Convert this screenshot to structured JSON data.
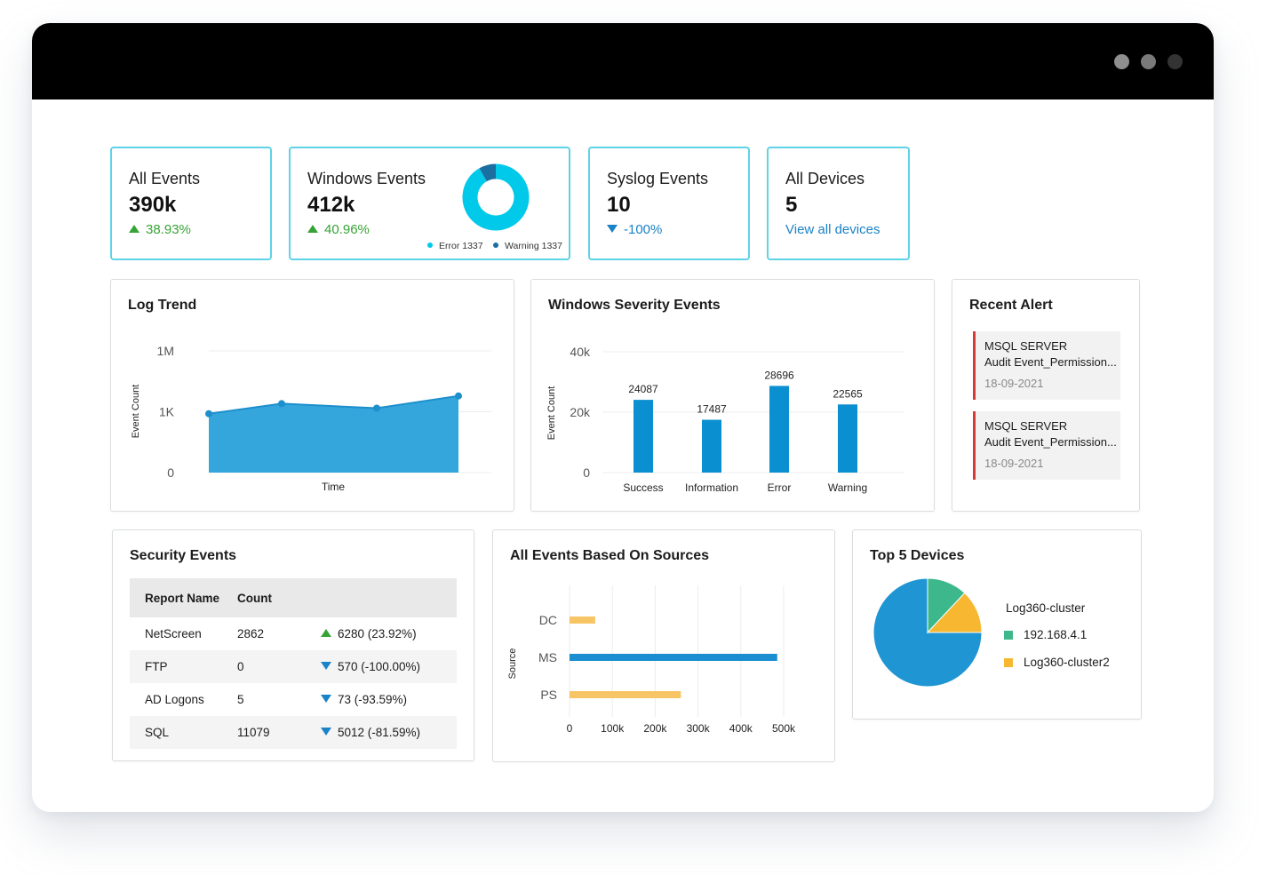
{
  "window": {
    "controls": [
      "window-control",
      "window-control",
      "window-control"
    ]
  },
  "kpis": {
    "all_events": {
      "title": "All Events",
      "value": "390k",
      "change": "38.93%"
    },
    "windows_events": {
      "title": "Windows Events",
      "value": "412k",
      "change": "40.96%",
      "legend": [
        {
          "label": "Error 1337",
          "color": "#00c9ea"
        },
        {
          "label": "Warning 1337",
          "color": "#1a6fa0"
        }
      ]
    },
    "syslog_events": {
      "title": "Syslog Events",
      "value": "10",
      "change": "-100%"
    },
    "all_devices": {
      "title": "All Devices",
      "value": "5",
      "link": "View all devices"
    }
  },
  "log_trend": {
    "title": "Log Trend"
  },
  "windows_severity": {
    "title": "Windows Severity Events"
  },
  "recent_alert": {
    "title": "Recent Alert",
    "items": [
      {
        "source": "MSQL SERVER",
        "event": "Audit Event_Permission...",
        "date": "18-09-2021"
      },
      {
        "source": "MSQL SERVER",
        "event": "Audit Event_Permission...",
        "date": "18-09-2021"
      }
    ]
  },
  "security_events": {
    "title": "Security Events",
    "headers": [
      "Report Name",
      "Count"
    ],
    "rows": [
      {
        "name": "NetScreen",
        "count": "2862",
        "trend": "6280 (23.92%)",
        "direction": "up"
      },
      {
        "name": "FTP",
        "count": "0",
        "trend": "570 (-100.00%)",
        "direction": "down"
      },
      {
        "name": "AD Logons",
        "count": "5",
        "trend": "73 (-93.59%)",
        "direction": "down"
      },
      {
        "name": "SQL",
        "count": "11079",
        "trend": "5012 (-81.59%)",
        "direction": "down"
      }
    ]
  },
  "sources": {
    "title": "All Events Based On Sources"
  },
  "top_devices": {
    "title": "Top 5 Devices",
    "legend": [
      {
        "label": "Log360-cluster",
        "color": "#1f96d3",
        "swatch": false
      },
      {
        "label": "192.168.4.1",
        "color": "#3cb88c",
        "swatch": true
      },
      {
        "label": "Log360-cluster2",
        "color": "#f7b731",
        "swatch": true
      }
    ]
  },
  "chart_data": [
    {
      "type": "pie",
      "variant": "donut",
      "slices": [
        {
          "label": "Error 1337",
          "value": 1337,
          "color": "#00c9ea"
        },
        {
          "label": "Warning 1337",
          "value": 120,
          "color": "#1a6fa0"
        }
      ]
    },
    {
      "type": "area",
      "title": "Log Trend",
      "xlabel": "Time",
      "ylabel": "Event Count",
      "scale": "log",
      "yticks": [
        "0",
        "1K",
        "1M"
      ],
      "values": [
        800,
        2500,
        1500,
        6000
      ],
      "color": "#35a6dc",
      "grid": true
    },
    {
      "type": "bar",
      "title": "Windows Severity Events",
      "ylabel": "Event Count",
      "categories": [
        "Success",
        "Information",
        "Error",
        "Warning"
      ],
      "values": [
        24087,
        17487,
        28696,
        22565
      ],
      "yticks": [
        "0",
        "20k",
        "40k"
      ],
      "ylim": [
        0,
        40000
      ],
      "color": "#0a8fd0",
      "grid": true
    },
    {
      "type": "bar",
      "orientation": "horizontal",
      "title": "All Events Based On Sources",
      "ylabel": "Source",
      "categories": [
        "DC",
        "MS",
        "PS"
      ],
      "series": [
        {
          "values": [
            60000,
            485000,
            260000
          ]
        }
      ],
      "colors": [
        "#f7c565",
        "#1a8ed0",
        "#f7c565"
      ],
      "xticks": [
        "0",
        "100k",
        "200k",
        "300k",
        "400k",
        "500k"
      ],
      "xlim": [
        0,
        500000
      ],
      "grid": true
    },
    {
      "type": "pie",
      "title": "Top 5 Devices",
      "slices": [
        {
          "label": "Log360-cluster",
          "value": 75,
          "color": "#1f96d3"
        },
        {
          "label": "192.168.4.1",
          "value": 12,
          "color": "#3cb88c"
        },
        {
          "label": "Log360-cluster2",
          "value": 13,
          "color": "#f7b731"
        }
      ]
    }
  ]
}
